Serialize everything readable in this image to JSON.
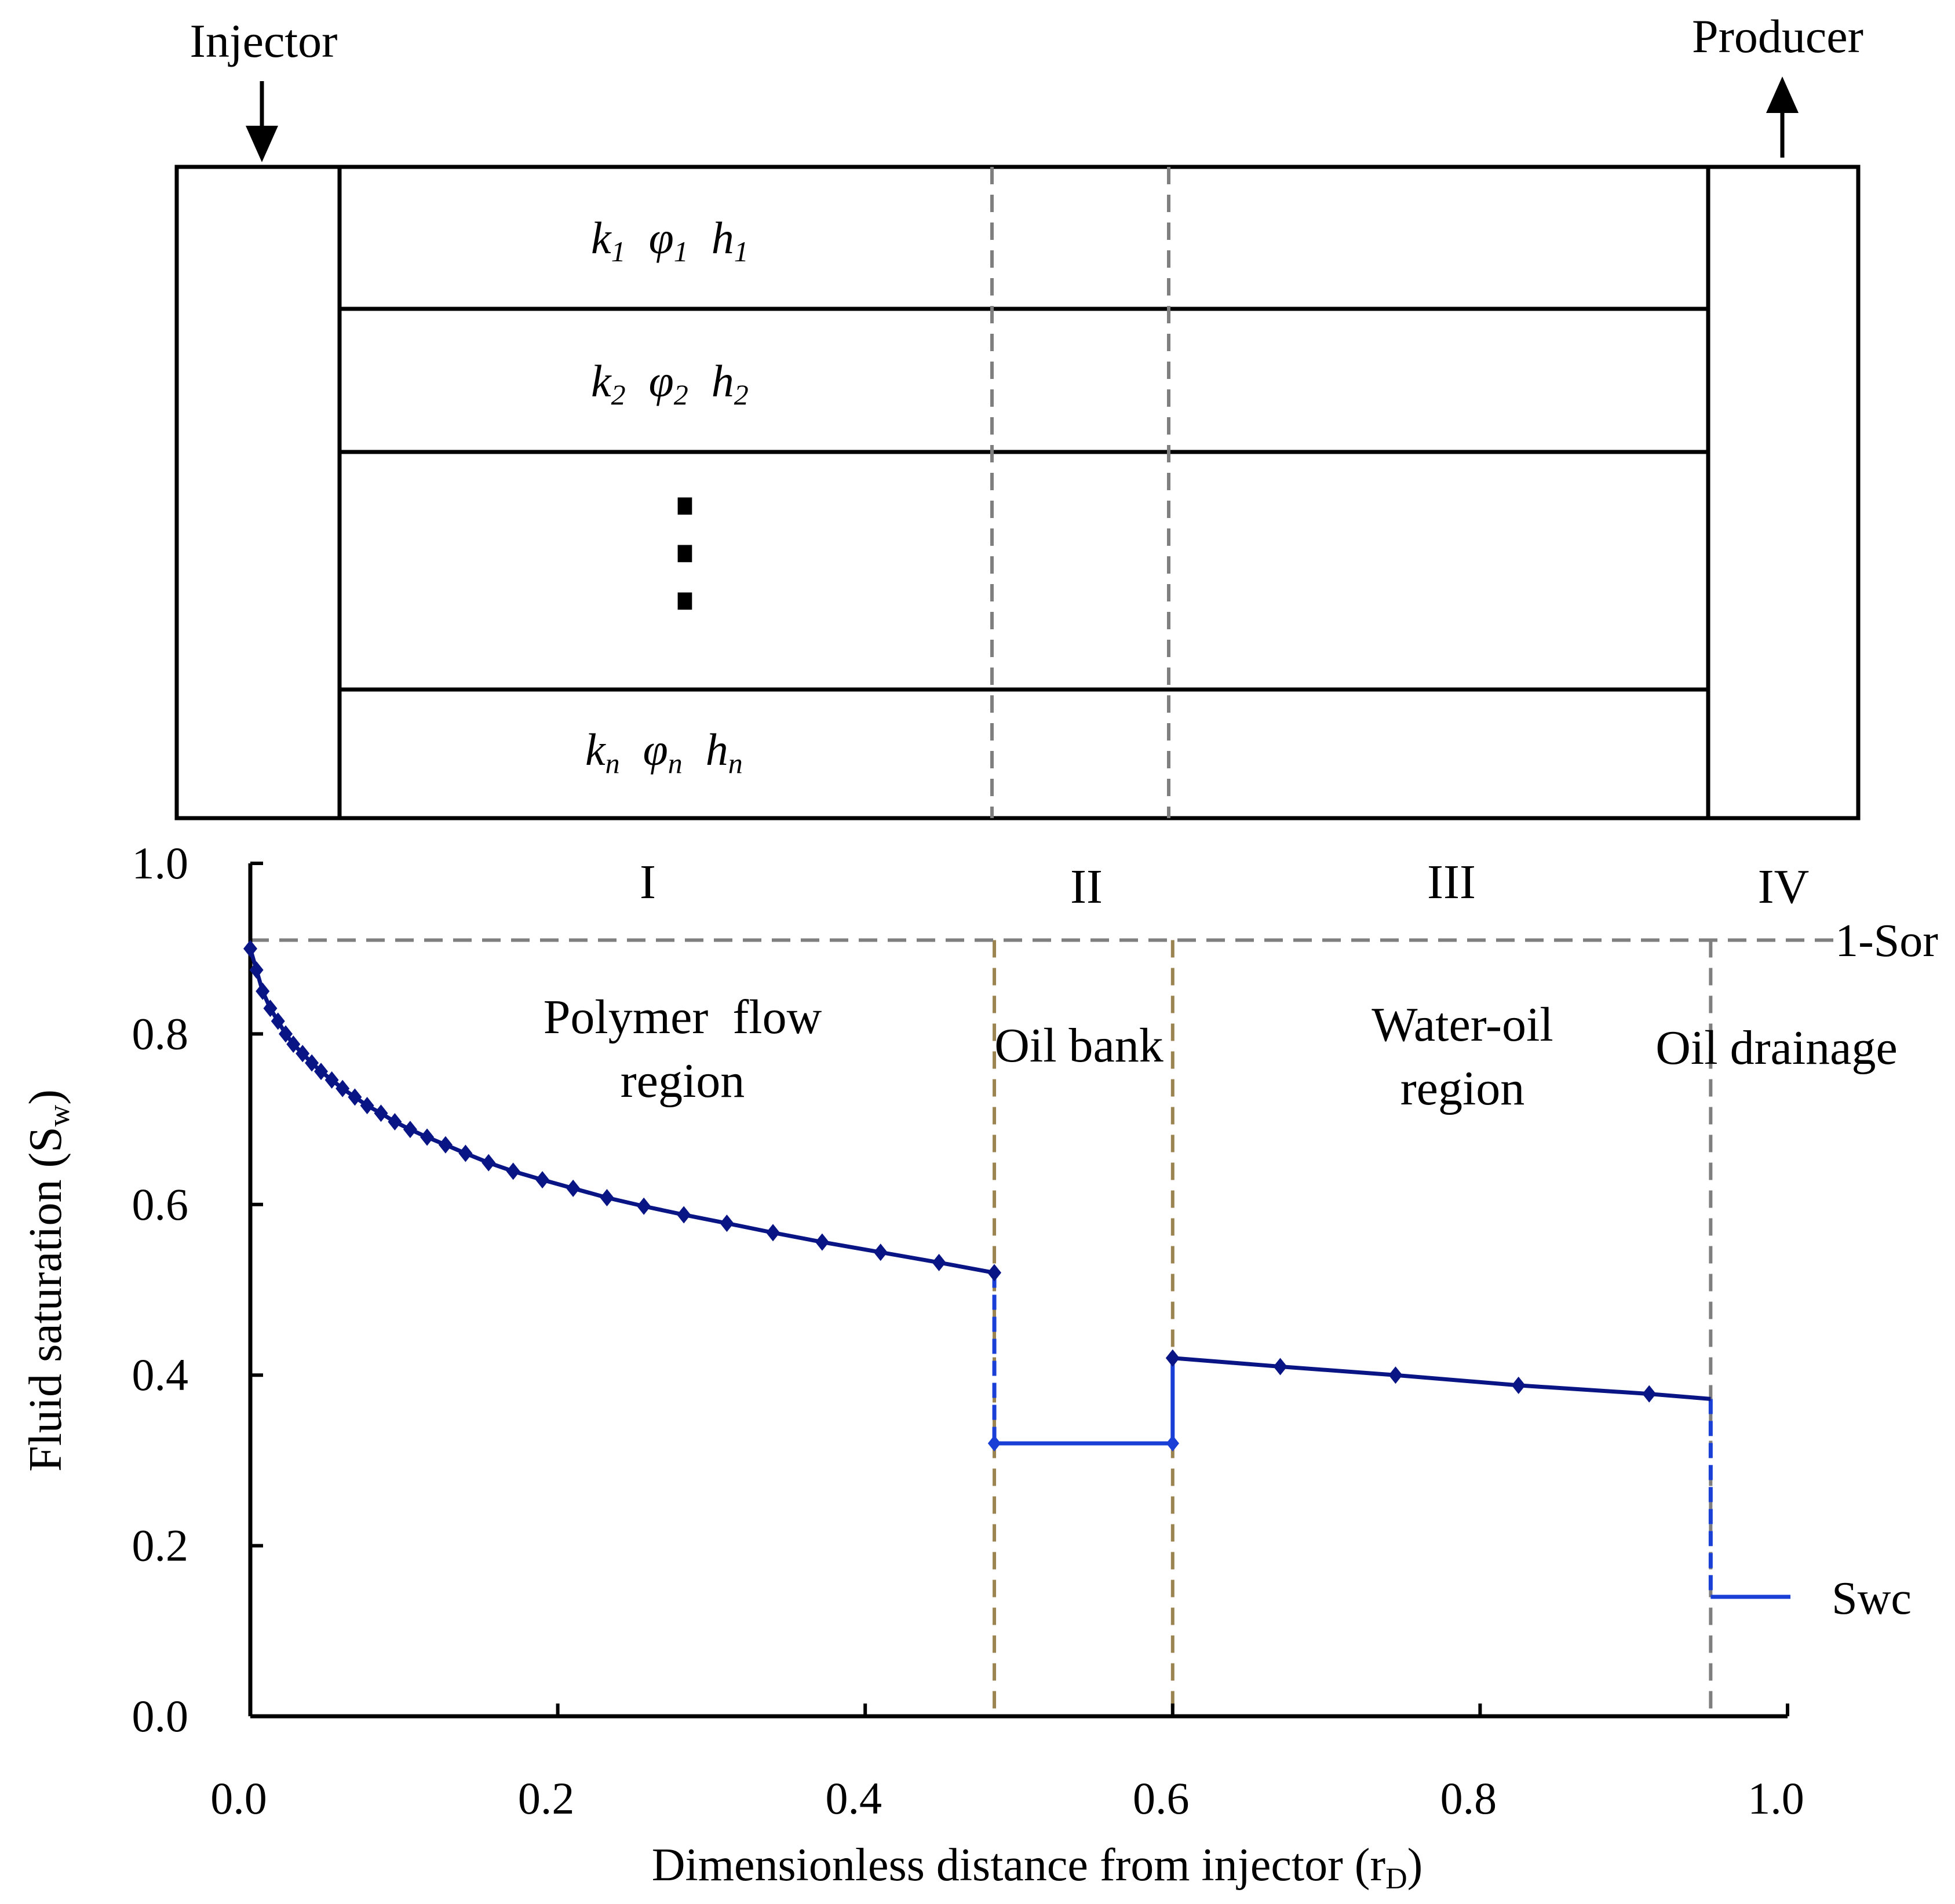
{
  "diagram": {
    "injector_label": "Injector",
    "producer_label": "Producer",
    "layers": [
      {
        "k": "k",
        "phi": "φ",
        "h": "h",
        "sub": "1"
      },
      {
        "k": "k",
        "phi": "φ",
        "h": "h",
        "sub": "2"
      },
      {
        "k": "k",
        "phi": "φ",
        "h": "h",
        "sub": "n"
      }
    ],
    "ellipsis": "⋮"
  },
  "chart_data": {
    "type": "line",
    "xlabel_main": "Dimensionless distance from injector (r",
    "xlabel_sub": "D",
    "xlabel_end": ")",
    "ylabel_main": "Fluid saturation (S",
    "ylabel_sub": "w",
    "ylabel_end": ")",
    "xlim": [
      0,
      1
    ],
    "ylim": [
      0,
      1
    ],
    "xticks": [
      "0.0",
      "0.2",
      "0.4",
      "0.6",
      "0.8",
      "1.0"
    ],
    "yticks": [
      "0.0",
      "0.2",
      "0.4",
      "0.6",
      "0.8",
      "1.0"
    ],
    "regions": [
      {
        "roman": "I",
        "line1": "Polymer  flow",
        "line2": "region"
      },
      {
        "roman": "II",
        "line1": "Oil bank",
        "line2": ""
      },
      {
        "roman": "III",
        "line1": "Water-oil",
        "line2": "region"
      },
      {
        "roman": "IV",
        "line1": "Oil drainage",
        "line2": ""
      }
    ],
    "boundaries": [
      0.484,
      0.6,
      0.95
    ],
    "sor_label": "1-Sor",
    "sor_value": 0.91,
    "swc_label": "Swc",
    "swc_value": 0.14,
    "series": [
      {
        "name": "Polymer flow region",
        "x": [
          0.0,
          0.004,
          0.008,
          0.013,
          0.018,
          0.023,
          0.028,
          0.034,
          0.04,
          0.046,
          0.053,
          0.06,
          0.068,
          0.076,
          0.085,
          0.094,
          0.104,
          0.115,
          0.127,
          0.14,
          0.155,
          0.171,
          0.19,
          0.21,
          0.232,
          0.256,
          0.282,
          0.31,
          0.34,
          0.372,
          0.41,
          0.448,
          0.484
        ],
        "y": [
          0.9,
          0.875,
          0.85,
          0.83,
          0.815,
          0.8,
          0.788,
          0.777,
          0.766,
          0.756,
          0.746,
          0.736,
          0.726,
          0.716,
          0.707,
          0.697,
          0.688,
          0.679,
          0.67,
          0.66,
          0.649,
          0.639,
          0.629,
          0.619,
          0.608,
          0.598,
          0.588,
          0.578,
          0.567,
          0.556,
          0.544,
          0.532,
          0.52
        ]
      },
      {
        "name": "Oil bank",
        "x": [
          0.484,
          0.6
        ],
        "y": [
          0.32,
          0.32
        ]
      },
      {
        "name": "Water-oil region",
        "x": [
          0.6,
          0.67,
          0.745,
          0.825,
          0.91,
          0.95
        ],
        "y": [
          0.42,
          0.41,
          0.4,
          0.388,
          0.378,
          0.372
        ]
      }
    ]
  },
  "colors": {
    "series": "#0a1585",
    "step": "#1a3fd6",
    "gold_dash": "#9b8450",
    "gray_dash": "#7f7f7f"
  }
}
